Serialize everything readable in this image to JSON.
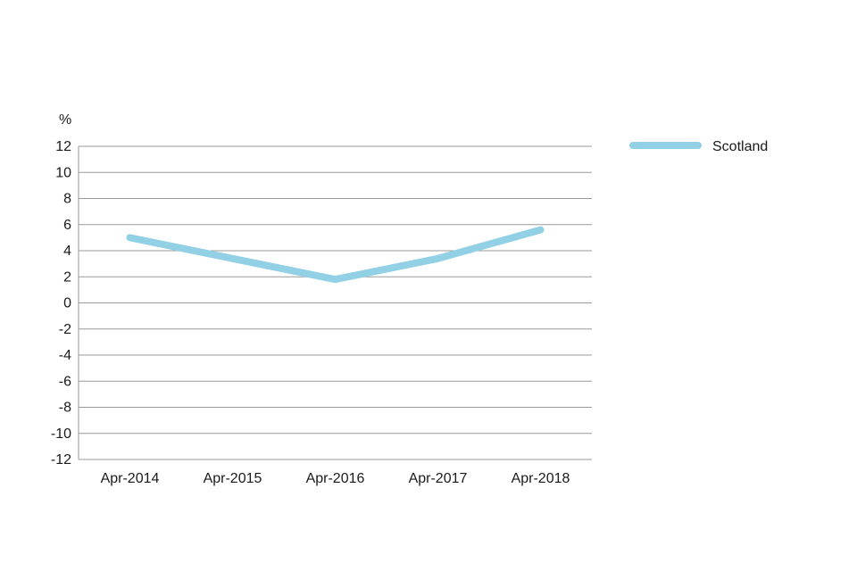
{
  "chart_data": {
    "type": "line",
    "ylabel": "%",
    "ylim": [
      -12,
      12
    ],
    "yticks": [
      12,
      10,
      8,
      6,
      4,
      2,
      0,
      -2,
      -4,
      -6,
      -8,
      -10,
      -12
    ],
    "categories": [
      "Apr-2014",
      "Apr-2015",
      "Apr-2016",
      "Apr-2017",
      "Apr-2018"
    ],
    "series": [
      {
        "name": "Scotland",
        "values": [
          5.0,
          3.4,
          1.8,
          3.4,
          5.6
        ],
        "color": "#92d1e5"
      }
    ],
    "grid": true,
    "legend": "top-right",
    "gridColor": "#9a9a9a"
  }
}
